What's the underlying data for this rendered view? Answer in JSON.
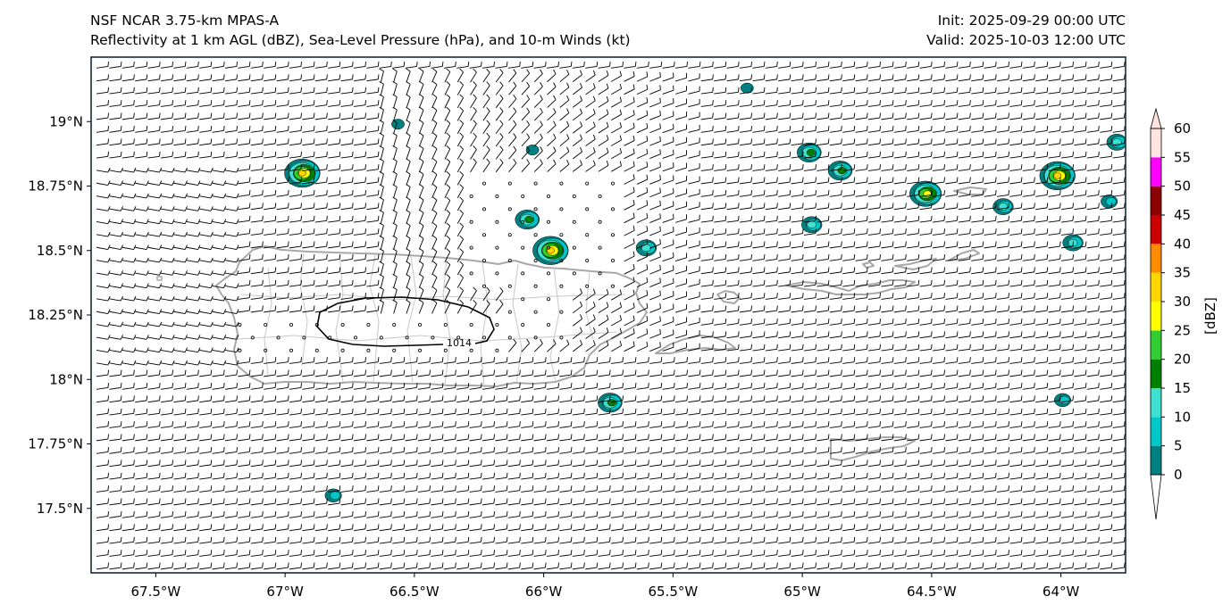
{
  "title": {
    "left_line1": "NSF NCAR 3.75-km MPAS-A",
    "left_line2": "Reflectivity at 1 km AGL (dBZ), Sea-Level Pressure (hPa), and 10-m Winds (kt)",
    "right_line1": "Init: 2025-09-29 00:00 UTC",
    "right_line2": "Valid: 2025-10-03 12:00 UTC"
  },
  "map": {
    "lon_range": [
      -67.75,
      -63.75
    ],
    "lat_range": [
      17.25,
      19.25
    ],
    "lon_ticks": [
      {
        "value": -67.5,
        "label": "67.5°W"
      },
      {
        "value": -67.0,
        "label": "67°W"
      },
      {
        "value": -66.5,
        "label": "66.5°W"
      },
      {
        "value": -66.0,
        "label": "66°W"
      },
      {
        "value": -65.5,
        "label": "65.5°W"
      },
      {
        "value": -65.0,
        "label": "65°W"
      },
      {
        "value": -64.5,
        "label": "64.5°W"
      },
      {
        "value": -64.0,
        "label": "64°W"
      }
    ],
    "lat_ticks": [
      {
        "value": 19.0,
        "label": "19°N"
      },
      {
        "value": 18.75,
        "label": "18.75°N"
      },
      {
        "value": 18.5,
        "label": "18.5°N"
      },
      {
        "value": 18.25,
        "label": "18.25°N"
      },
      {
        "value": 18.0,
        "label": "18°N"
      },
      {
        "value": 17.75,
        "label": "17.75°N"
      },
      {
        "value": 17.5,
        "label": "17.5°N"
      }
    ],
    "isobar_label": "1014",
    "isobar_value_hpa": 1014,
    "coast_color": "#a8a8a8",
    "barb_color": "#000000"
  },
  "colorbar": {
    "label": "[dBZ]",
    "ticks": [
      "0",
      "5",
      "10",
      "15",
      "20",
      "25",
      "30",
      "35",
      "40",
      "45",
      "50",
      "55",
      "60"
    ],
    "colors": [
      "#008080",
      "#00c8c8",
      "#40e0d0",
      "#008000",
      "#32cd32",
      "#ffff00",
      "#ffd700",
      "#ff8c00",
      "#cc0000",
      "#8b0000",
      "#ff00ff",
      "#ffe4e1"
    ]
  },
  "cells": [
    {
      "lon": -66.93,
      "lat": 18.8,
      "max_dbz": 35
    },
    {
      "lon": -65.97,
      "lat": 18.5,
      "max_dbz": 35
    },
    {
      "lon": -64.01,
      "lat": 18.79,
      "max_dbz": 35
    },
    {
      "lon": -64.52,
      "lat": 18.72,
      "max_dbz": 30
    },
    {
      "lon": -64.85,
      "lat": 18.81,
      "max_dbz": 20
    },
    {
      "lon": -64.97,
      "lat": 18.88,
      "max_dbz": 20
    },
    {
      "lon": -65.74,
      "lat": 17.91,
      "max_dbz": 20
    },
    {
      "lon": -63.78,
      "lat": 18.92,
      "max_dbz": 15
    },
    {
      "lon": -66.06,
      "lat": 18.62,
      "max_dbz": 20
    },
    {
      "lon": -65.6,
      "lat": 18.51,
      "max_dbz": 15
    },
    {
      "lon": -64.96,
      "lat": 18.6,
      "max_dbz": 15
    },
    {
      "lon": -64.22,
      "lat": 18.67,
      "max_dbz": 15
    },
    {
      "lon": -63.95,
      "lat": 18.53,
      "max_dbz": 15
    },
    {
      "lon": -63.99,
      "lat": 17.92,
      "max_dbz": 10
    },
    {
      "lon": -63.81,
      "lat": 18.69,
      "max_dbz": 10
    },
    {
      "lon": -66.81,
      "lat": 17.55,
      "max_dbz": 10
    },
    {
      "lon": -66.04,
      "lat": 18.89,
      "max_dbz": 5
    },
    {
      "lon": -66.56,
      "lat": 18.99,
      "max_dbz": 5
    },
    {
      "lon": -65.21,
      "lat": 19.13,
      "max_dbz": 5
    }
  ]
}
